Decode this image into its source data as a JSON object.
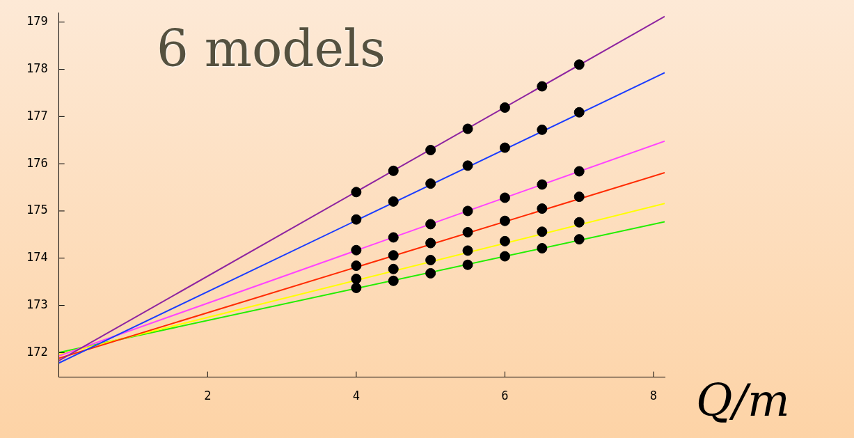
{
  "chart_data": {
    "type": "line",
    "title": "6 models",
    "xlabel": "Q/m",
    "xlim": [
      0,
      8.15
    ],
    "ylim": [
      171.48,
      179.2
    ],
    "xticks": [
      2,
      4,
      6,
      8
    ],
    "yticks": [
      172,
      173,
      174,
      175,
      176,
      177,
      178,
      179
    ],
    "grid": false,
    "legend": false,
    "series": [
      {
        "marker": "none",
        "color": "#8e24a0",
        "x": [
          0,
          8.15
        ],
        "values": [
          171.83,
          179.12
        ]
      },
      {
        "marker": "none",
        "color": "#1a3cff",
        "x": [
          0,
          8.15
        ],
        "values": [
          171.78,
          177.93
        ]
      },
      {
        "marker": "none",
        "color": "#ff44ff",
        "x": [
          0,
          8.15
        ],
        "values": [
          171.93,
          176.48
        ]
      },
      {
        "marker": "none",
        "color": "#ff2a00",
        "x": [
          0,
          8.15
        ],
        "values": [
          171.88,
          175.81
        ]
      },
      {
        "marker": "none",
        "color": "#ffff00",
        "x": [
          0,
          8.15
        ],
        "values": [
          171.96,
          175.16
        ]
      },
      {
        "marker": "none",
        "color": "#22ee00",
        "x": [
          0,
          8.15
        ],
        "values": [
          172.0,
          174.77
        ]
      },
      {
        "type": "scatter",
        "marker": "circle",
        "color": "#000000",
        "x": [
          4,
          4.5,
          5,
          5.5,
          6,
          6.5,
          7,
          4,
          4.5,
          5,
          5.5,
          6,
          6.5,
          7,
          4,
          4.5,
          5,
          5.5,
          6,
          6.5,
          7,
          4,
          4.5,
          5,
          5.5,
          6,
          6.5,
          7,
          4,
          4.5,
          5,
          5.5,
          6,
          6.5,
          7,
          4,
          4.5,
          5,
          5.5,
          6,
          6.5,
          7
        ],
        "values": [
          175.4,
          175.85,
          176.29,
          176.74,
          177.19,
          177.64,
          178.1,
          174.82,
          175.2,
          175.58,
          175.96,
          176.34,
          176.72,
          177.09,
          174.17,
          174.44,
          174.72,
          175.0,
          175.28,
          175.56,
          175.84,
          173.84,
          174.06,
          174.32,
          174.55,
          174.79,
          175.05,
          175.3,
          173.56,
          173.77,
          173.96,
          174.16,
          174.36,
          174.56,
          174.76,
          173.37,
          173.52,
          173.68,
          173.86,
          174.04,
          174.21,
          174.4
        ]
      }
    ]
  }
}
